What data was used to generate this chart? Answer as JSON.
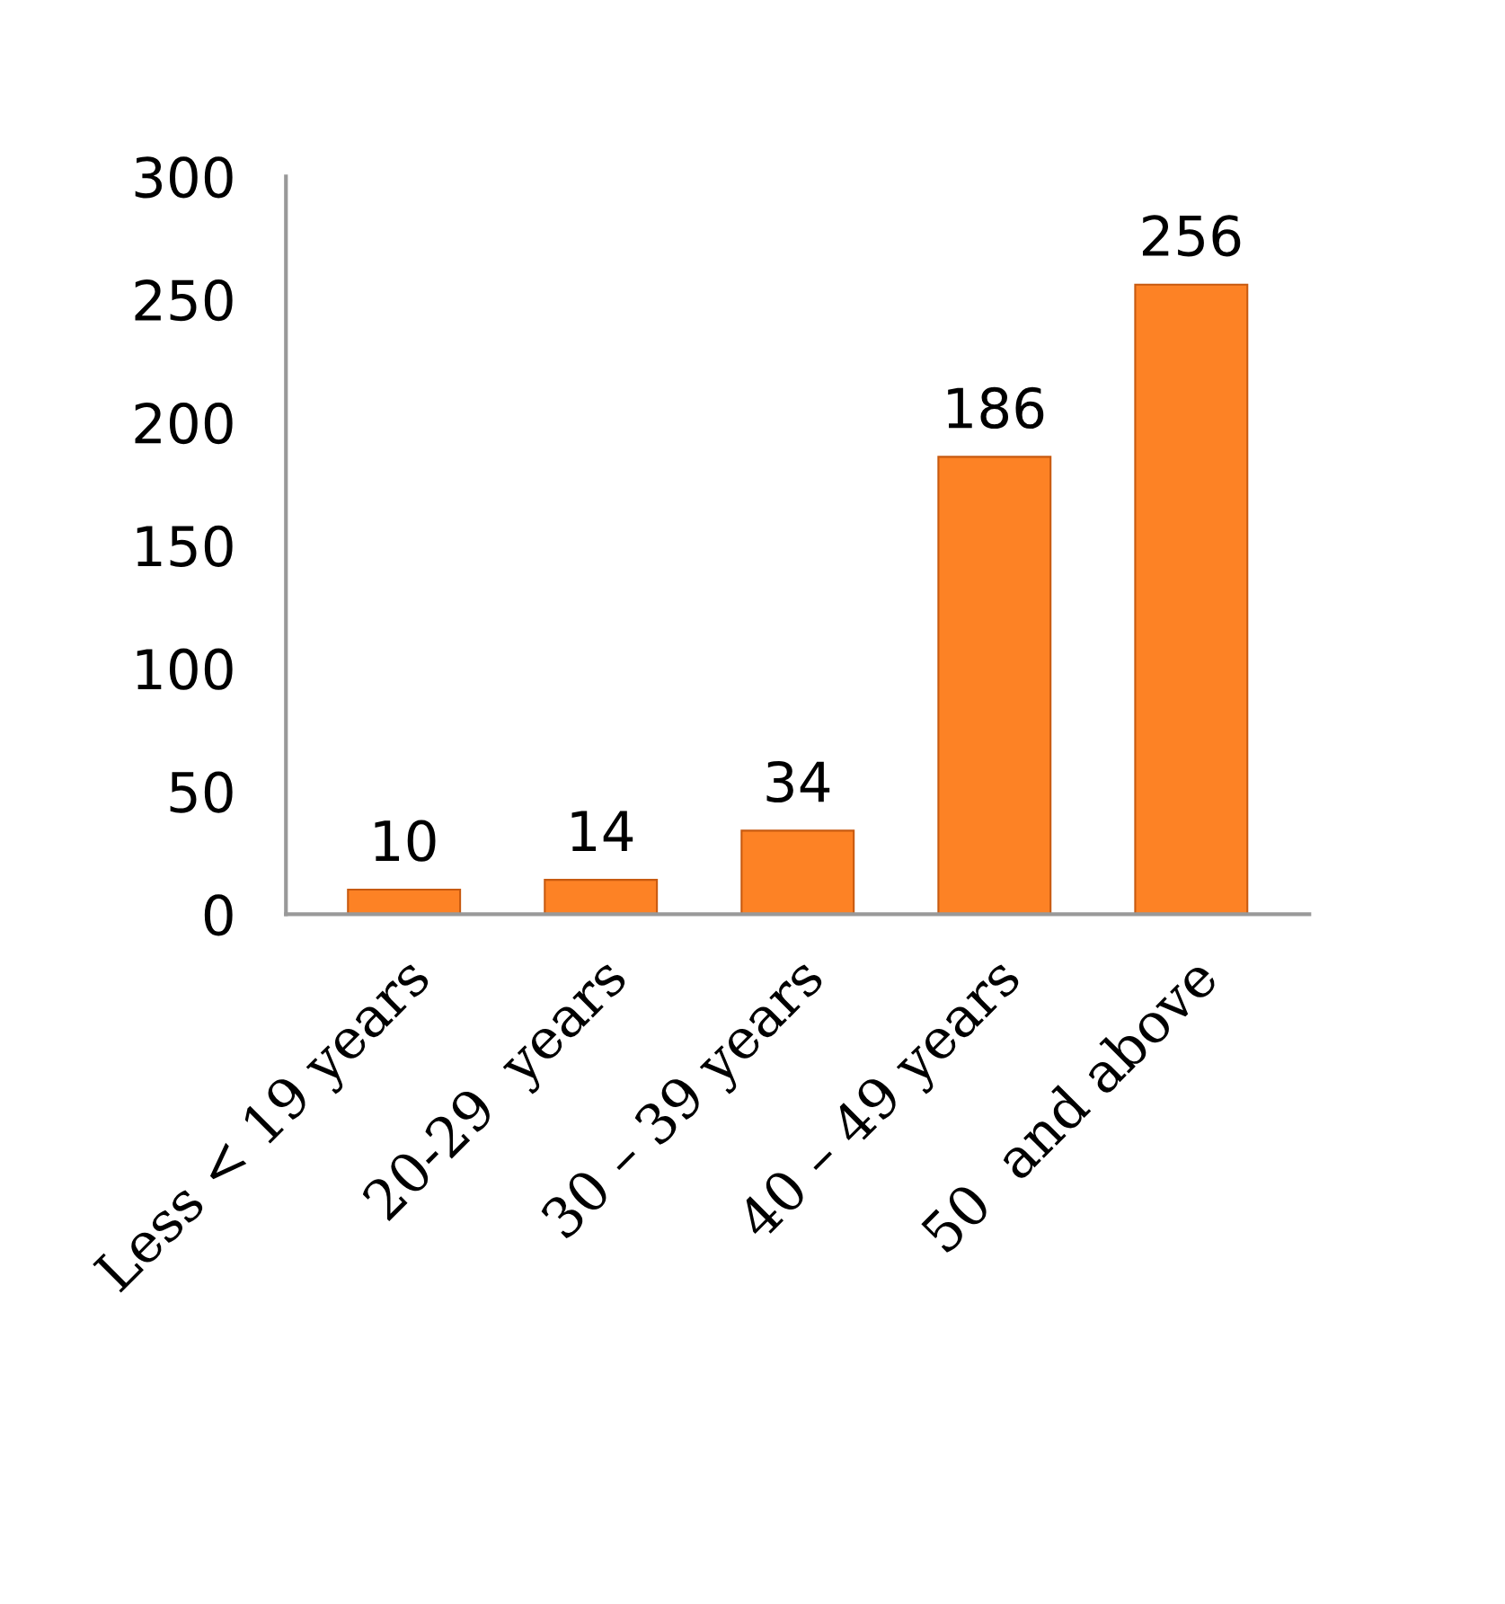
{
  "chart_data": {
    "type": "bar",
    "categories": [
      "Less < 19 years",
      "20-29  years",
      "30 – 39 years",
      "40 – 49 years",
      "50  and above"
    ],
    "values": [
      10,
      14,
      34,
      186,
      256
    ],
    "color": "#fd8225",
    "ylim": [
      0,
      300
    ],
    "yticks": [
      0,
      50,
      100,
      150,
      200,
      250,
      300
    ],
    "grid": false,
    "data_labels": true
  }
}
